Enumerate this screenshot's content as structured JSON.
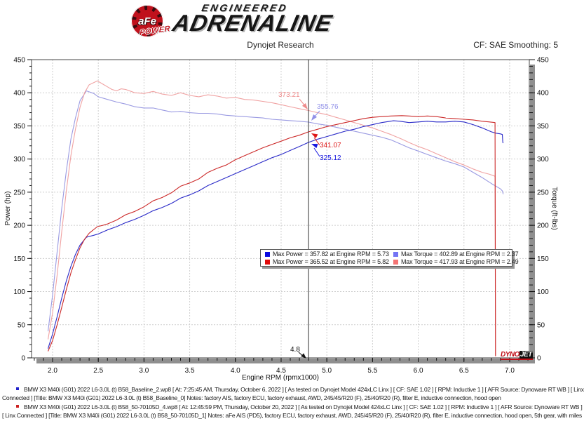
{
  "header": {
    "brand_circle_text": "aFe",
    "brand_power": "POWER",
    "brand_engineered": "ENGINEERED",
    "brand_adrenaline": "ADRENALINE",
    "subtitle": "Dynojet Research",
    "cf_label": "CF: SAE Smoothing: 5"
  },
  "chart_data": {
    "type": "line",
    "xlabel": "Engine RPM (rpmx1000)",
    "ylabel_left": "Power (hp)",
    "ylabel_right": "Torque (ft-lbs)",
    "xlim": [
      1.77,
      7.215
    ],
    "x_tick_min": 2.0,
    "x_tick_max": 7.0,
    "x_tick_step": 0.5,
    "x_minor_step": 0.1,
    "ylim": [
      0,
      450
    ],
    "y_tick_step": 50,
    "y_minor_step": 10,
    "grid": true,
    "legend_position": "bottom-center-box",
    "cursor": {
      "x": 4.8,
      "label": "4.8"
    },
    "series": [
      {
        "name": "baseline-power",
        "legend": "Max Power = 357.82 at Engine RPM = 5.73",
        "max": 357.82,
        "max_rpm": 5.73,
        "color": "#2a2ac8",
        "swatch": "#0a0ae0",
        "points": [
          [
            1.95,
            14
          ],
          [
            2.0,
            36
          ],
          [
            2.05,
            62
          ],
          [
            2.1,
            90
          ],
          [
            2.15,
            116
          ],
          [
            2.2,
            138
          ],
          [
            2.25,
            156
          ],
          [
            2.3,
            170
          ],
          [
            2.37,
            182
          ],
          [
            2.45,
            185
          ],
          [
            2.5,
            187
          ],
          [
            2.6,
            193
          ],
          [
            2.7,
            198
          ],
          [
            2.8,
            204
          ],
          [
            2.9,
            209
          ],
          [
            3.0,
            215
          ],
          [
            3.1,
            222
          ],
          [
            3.2,
            227
          ],
          [
            3.3,
            233
          ],
          [
            3.4,
            241
          ],
          [
            3.5,
            246
          ],
          [
            3.6,
            252
          ],
          [
            3.7,
            260
          ],
          [
            3.8,
            266
          ],
          [
            3.9,
            272
          ],
          [
            4.0,
            278
          ],
          [
            4.1,
            284
          ],
          [
            4.2,
            290
          ],
          [
            4.3,
            296
          ],
          [
            4.4,
            302
          ],
          [
            4.5,
            307
          ],
          [
            4.6,
            313
          ],
          [
            4.7,
            319
          ],
          [
            4.8,
            325.12
          ],
          [
            4.9,
            330
          ],
          [
            5.0,
            334
          ],
          [
            5.1,
            338
          ],
          [
            5.2,
            342
          ],
          [
            5.3,
            345
          ],
          [
            5.4,
            349
          ],
          [
            5.5,
            352
          ],
          [
            5.6,
            355
          ],
          [
            5.73,
            357.82
          ],
          [
            5.8,
            357
          ],
          [
            5.9,
            355
          ],
          [
            6.0,
            356
          ],
          [
            6.1,
            357
          ],
          [
            6.2,
            356
          ],
          [
            6.3,
            356
          ],
          [
            6.4,
            357
          ],
          [
            6.5,
            356
          ],
          [
            6.6,
            352
          ],
          [
            6.7,
            347
          ],
          [
            6.8,
            341
          ],
          [
            6.85,
            339
          ],
          [
            6.9,
            338
          ],
          [
            6.92,
            337
          ],
          [
            6.925,
            325
          ],
          [
            6.93,
            324
          ]
        ]
      },
      {
        "name": "baseline-torque",
        "legend": "Max Torque = 402.89 at Engine RPM = 2.37",
        "max": 402.89,
        "max_rpm": 2.37,
        "color": "#9a9ae2",
        "swatch": "#7474f4",
        "points": [
          [
            1.95,
            40
          ],
          [
            2.0,
            95
          ],
          [
            2.05,
            160
          ],
          [
            2.1,
            225
          ],
          [
            2.15,
            282
          ],
          [
            2.2,
            330
          ],
          [
            2.25,
            362
          ],
          [
            2.3,
            388
          ],
          [
            2.37,
            402.89
          ],
          [
            2.45,
            399
          ],
          [
            2.5,
            394
          ],
          [
            2.6,
            390
          ],
          [
            2.7,
            386
          ],
          [
            2.8,
            383
          ],
          [
            2.9,
            379
          ],
          [
            3.0,
            377
          ],
          [
            3.1,
            377
          ],
          [
            3.2,
            374
          ],
          [
            3.3,
            371
          ],
          [
            3.4,
            372
          ],
          [
            3.5,
            370
          ],
          [
            3.6,
            369
          ],
          [
            3.7,
            369
          ],
          [
            3.8,
            368
          ],
          [
            3.9,
            366
          ],
          [
            4.0,
            365
          ],
          [
            4.1,
            364
          ],
          [
            4.2,
            363
          ],
          [
            4.3,
            362
          ],
          [
            4.4,
            360
          ],
          [
            4.5,
            359
          ],
          [
            4.6,
            358
          ],
          [
            4.7,
            357
          ],
          [
            4.8,
            355.76
          ],
          [
            4.9,
            353
          ],
          [
            5.0,
            351
          ],
          [
            5.1,
            348
          ],
          [
            5.2,
            345
          ],
          [
            5.3,
            342
          ],
          [
            5.4,
            339
          ],
          [
            5.5,
            336
          ],
          [
            5.6,
            333
          ],
          [
            5.7,
            329
          ],
          [
            5.8,
            323
          ],
          [
            5.9,
            317
          ],
          [
            6.0,
            312
          ],
          [
            6.1,
            307
          ],
          [
            6.2,
            302
          ],
          [
            6.3,
            297
          ],
          [
            6.4,
            293
          ],
          [
            6.5,
            288
          ],
          [
            6.6,
            280
          ],
          [
            6.7,
            272
          ],
          [
            6.8,
            263
          ],
          [
            6.85,
            259
          ],
          [
            6.9,
            255
          ],
          [
            6.92,
            252
          ],
          [
            6.93,
            247
          ]
        ]
      },
      {
        "name": "afe-power",
        "legend": "Max Power = 365.52 at Engine RPM = 5.82",
        "max": 365.52,
        "max_rpm": 5.82,
        "color": "#cc2a2a",
        "swatch": "#e00a0a",
        "points": [
          [
            1.95,
            10
          ],
          [
            2.0,
            26
          ],
          [
            2.05,
            50
          ],
          [
            2.1,
            76
          ],
          [
            2.15,
            103
          ],
          [
            2.2,
            128
          ],
          [
            2.25,
            148
          ],
          [
            2.3,
            166
          ],
          [
            2.35,
            179
          ],
          [
            2.4,
            188
          ],
          [
            2.49,
            198
          ],
          [
            2.55,
            200
          ],
          [
            2.6,
            202
          ],
          [
            2.7,
            208
          ],
          [
            2.8,
            216
          ],
          [
            2.9,
            221
          ],
          [
            3.0,
            228
          ],
          [
            3.1,
            237
          ],
          [
            3.2,
            242
          ],
          [
            3.3,
            249
          ],
          [
            3.4,
            259
          ],
          [
            3.5,
            264
          ],
          [
            3.6,
            270
          ],
          [
            3.7,
            280
          ],
          [
            3.8,
            286
          ],
          [
            3.9,
            291
          ],
          [
            4.0,
            299
          ],
          [
            4.1,
            305
          ],
          [
            4.2,
            311
          ],
          [
            4.3,
            317
          ],
          [
            4.4,
            322
          ],
          [
            4.5,
            327
          ],
          [
            4.6,
            332
          ],
          [
            4.7,
            336
          ],
          [
            4.8,
            341.07
          ],
          [
            4.9,
            345
          ],
          [
            5.0,
            349
          ],
          [
            5.1,
            352
          ],
          [
            5.2,
            355
          ],
          [
            5.3,
            358
          ],
          [
            5.4,
            361
          ],
          [
            5.5,
            363
          ],
          [
            5.6,
            364
          ],
          [
            5.7,
            365
          ],
          [
            5.82,
            365.52
          ],
          [
            5.9,
            365
          ],
          [
            6.0,
            364
          ],
          [
            6.1,
            365
          ],
          [
            6.2,
            364
          ],
          [
            6.3,
            362
          ],
          [
            6.4,
            361
          ],
          [
            6.5,
            360
          ],
          [
            6.6,
            359
          ],
          [
            6.7,
            357
          ],
          [
            6.78,
            356
          ],
          [
            6.84,
            355
          ],
          [
            6.845,
            3
          ]
        ]
      },
      {
        "name": "afe-torque",
        "legend": "Max Torque = 417.93 at Engine RPM = 2.49",
        "max": 417.93,
        "max_rpm": 2.49,
        "color": "#f0a2a2",
        "swatch": "#f47474",
        "points": [
          [
            1.95,
            28
          ],
          [
            2.0,
            68
          ],
          [
            2.05,
            125
          ],
          [
            2.1,
            190
          ],
          [
            2.15,
            252
          ],
          [
            2.2,
            305
          ],
          [
            2.25,
            345
          ],
          [
            2.3,
            378
          ],
          [
            2.35,
            400
          ],
          [
            2.4,
            412
          ],
          [
            2.49,
            417.93
          ],
          [
            2.55,
            413
          ],
          [
            2.6,
            409
          ],
          [
            2.65,
            405
          ],
          [
            2.7,
            403
          ],
          [
            2.75,
            406
          ],
          [
            2.8,
            405
          ],
          [
            2.9,
            400
          ],
          [
            3.0,
            399
          ],
          [
            3.1,
            402
          ],
          [
            3.2,
            398
          ],
          [
            3.3,
            396
          ],
          [
            3.4,
            400
          ],
          [
            3.5,
            396
          ],
          [
            3.6,
            394
          ],
          [
            3.7,
            397
          ],
          [
            3.8,
            395
          ],
          [
            3.9,
            392
          ],
          [
            4.0,
            393
          ],
          [
            4.1,
            390
          ],
          [
            4.2,
            389
          ],
          [
            4.3,
            387
          ],
          [
            4.4,
            385
          ],
          [
            4.5,
            382
          ],
          [
            4.6,
            379
          ],
          [
            4.7,
            376
          ],
          [
            4.8,
            373.21
          ],
          [
            4.9,
            370
          ],
          [
            5.0,
            367
          ],
          [
            5.1,
            363
          ],
          [
            5.2,
            359
          ],
          [
            5.3,
            355
          ],
          [
            5.4,
            351
          ],
          [
            5.5,
            347
          ],
          [
            5.6,
            342
          ],
          [
            5.7,
            337
          ],
          [
            5.82,
            330
          ],
          [
            5.9,
            325
          ],
          [
            6.0,
            319
          ],
          [
            6.1,
            314
          ],
          [
            6.2,
            308
          ],
          [
            6.3,
            302
          ],
          [
            6.4,
            296
          ],
          [
            6.5,
            291
          ],
          [
            6.6,
            285
          ],
          [
            6.7,
            280
          ],
          [
            6.78,
            277
          ],
          [
            6.84,
            274
          ],
          [
            6.845,
            2
          ]
        ]
      }
    ],
    "annotations": [
      {
        "text": "373.21",
        "value": 373.21,
        "series": "afe-torque",
        "color": "#ef8c8c"
      },
      {
        "text": "355.76",
        "value": 355.76,
        "series": "baseline-torque",
        "color": "#9090e8"
      },
      {
        "text": "341.07",
        "value": 341.07,
        "series": "afe-power",
        "color": "#de1616"
      },
      {
        "text": "325.12",
        "value": 325.12,
        "series": "baseline-power",
        "color": "#1616de"
      }
    ]
  },
  "watermark": {
    "dyno": "DYNO",
    "jet": "JET"
  },
  "footnotes": [
    {
      "bullet_color": "#2222cc",
      "line1": "BMW X3 M40i (G01) 2022 L6-3.0L (t) B58_Baseline_2.wp8 [ At: 7:25:45 AM, Thursday, October 6, 2022 ] [ As tested on Dynojet Model 424xLC Linx ] [ CF: SAE 1.02 ] [ RPM: Inductive 1 ] [ AFR Source: Dynoware RT WB ] [ Linx",
      "line2": "Connected ] [Title: BMW X3 M40i (G01) 2022 L6-3.0L (t) B58_Baseline_0]  Notes: factory AIS, factory ECU, factory exhaust, AWD, 245/45/R20 (F), 25/40/R20 (R), filter E, inductive connection, hood open"
    },
    {
      "bullet_color": "#cc2222",
      "line1": "BMW X3 M40i (G01) 2022 L6-3.0L (t) B58_50-70105D_4.wp8 [ At: 12:45:59 PM, Thursday, October 20, 2022 ] [ As tested on Dynojet Model 424xLC Linx ] [ CF: SAE 1.02 ] [ RPM: Inductive 1 ] [ AFR Source: Dynoware RT WB ]",
      "line2": "[ Linx Connected ] [Title: BMW X3 M40i (G01) 2022 L6-3.0L (t) B58_50-70105D_1]  Notes: aFe AIS (PD5), factory ECU, factory exhaust, AWD, 245/45/R20 (F), 25/40/R20 (R), filter E, inductive connection, hood open, 5th gear, with miles"
    }
  ]
}
